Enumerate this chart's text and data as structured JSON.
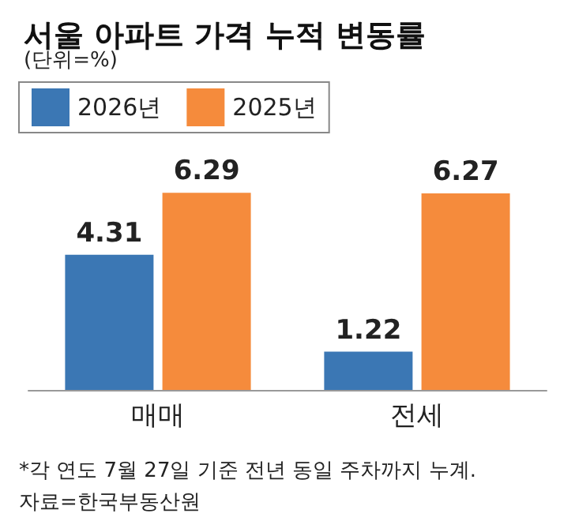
{
  "chart_data": {
    "type": "bar",
    "title": "서울 아파트 가격 누적 변동률",
    "subtitle": "(단위=%)",
    "categories": [
      "매매",
      "전세"
    ],
    "series": [
      {
        "name": "2026년",
        "color": "#3b77b4",
        "values": [
          4.31,
          1.22
        ]
      },
      {
        "name": "2025년",
        "color": "#f58b3c",
        "values": [
          6.29,
          6.27
        ]
      }
    ],
    "data_labels": true,
    "legend": "top left",
    "grid": false,
    "tick_labels": "x",
    "annotations": [
      "*각 연도 7월 27일 기준 전년 동일 주차까지 누계.",
      "자료=한국부동산원"
    ]
  }
}
